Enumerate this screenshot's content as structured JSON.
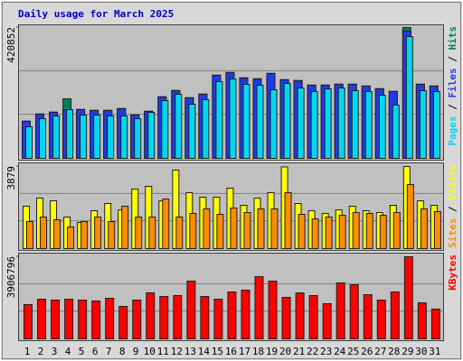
{
  "chart_data": {
    "type": "bar",
    "title": "Daily usage for March 2025",
    "categories": [
      "1",
      "2",
      "3",
      "4",
      "5",
      "6",
      "7",
      "8",
      "9",
      "10",
      "11",
      "12",
      "13",
      "14",
      "15",
      "16",
      "17",
      "18",
      "19",
      "20",
      "21",
      "22",
      "23",
      "24",
      "25",
      "26",
      "27",
      "28",
      "29",
      "30",
      "31"
    ],
    "category_color": "#0000a0",
    "highlighted_categories": [
      0,
      1,
      7,
      8,
      14,
      15,
      21,
      22,
      28,
      29
    ],
    "highlight_color": "#008040",
    "legend_separator": " / ",
    "panels": [
      {
        "ylim": [
          0,
          420852
        ],
        "yticks": [
          420852
        ],
        "series": [
          {
            "name": "Hits",
            "color": "#00805c",
            "values": [
              120000,
              143000,
              149000,
              191600,
              157600,
              154700,
              154700,
              160500,
              140200,
              151800,
              198300,
              218600,
              195400,
              207000,
              267900,
              276600,
              259200,
              256300,
              273700,
              253400,
              250500,
              236000,
              236000,
              238900,
              238900,
              233100,
              224400,
              215700,
              420852,
              238900,
              233100
            ]
          },
          {
            "name": "Files",
            "color": "#1e3ce6",
            "values": [
              119000,
              142200,
              148000,
              156700,
              156700,
              153800,
              153800,
              159600,
              139300,
              150900,
              197400,
              217700,
              194500,
              206100,
              267000,
              275700,
              258300,
              255400,
              272800,
              252500,
              249600,
              235100,
              235100,
              238000,
              238000,
              232200,
              223500,
              214800,
              410000,
              238000,
              232200
            ]
          },
          {
            "name": "Pages",
            "color": "#00d8f0",
            "values": [
              101600,
              127700,
              136400,
              156700,
              139300,
              139300,
              136400,
              136400,
              127700,
              148000,
              185800,
              206100,
              174100,
              188700,
              246700,
              255400,
              238000,
              235100,
              220600,
              240900,
              226400,
              214800,
              223500,
              226400,
              217700,
              214800,
              203200,
              171200,
              391800,
              217700,
              214800
            ]
          }
        ]
      },
      {
        "ylim": [
          0,
          3879
        ],
        "yticks": [
          3879
        ],
        "series": [
          {
            "name": "Visits",
            "color": "#ffff00",
            "values": [
              2004,
              2387,
              2259,
              1492,
              1236,
              1790,
              2131,
              1833,
              2813,
              2941,
              2259,
              3709,
              2643,
              2430,
              2430,
              2856,
              2046,
              2387,
              2643,
              3860,
              2131,
              1790,
              1662,
              1833,
              2004,
              1790,
              1705,
              2046,
              3879,
              2259,
              2046
            ]
          },
          {
            "name": "Sites",
            "color": "#ff8c00",
            "values": [
              1279,
              1492,
              1364,
              1023,
              1279,
              1492,
              1279,
              2004,
              1492,
              1492,
              2345,
              1492,
              1663,
              1876,
              1620,
              1918,
              1705,
              1876,
              1876,
              2643,
              1620,
              1407,
              1492,
              1577,
              1705,
              1663,
              1577,
              1705,
              3027,
              1876,
              1748
            ]
          }
        ]
      },
      {
        "ylim": [
          0,
          3906796
        ],
        "yticks": [
          3906796
        ],
        "series": [
          {
            "name": "KBytes",
            "color": "#ff0000",
            "values": [
              1631400,
              1889000,
              1846100,
              1889000,
              1846100,
              1803100,
              1931900,
              1545600,
              1846100,
              2189500,
              2017800,
              2060700,
              2747600,
              2017800,
              1889000,
              2232500,
              2318300,
              2962300,
              2747600,
              1974900,
              2189500,
              2060700,
              1674300,
              2661800,
              2575900,
              2103700,
              1846100,
              2232500,
              3906796,
              1717300,
              1416800
            ]
          }
        ]
      }
    ]
  }
}
